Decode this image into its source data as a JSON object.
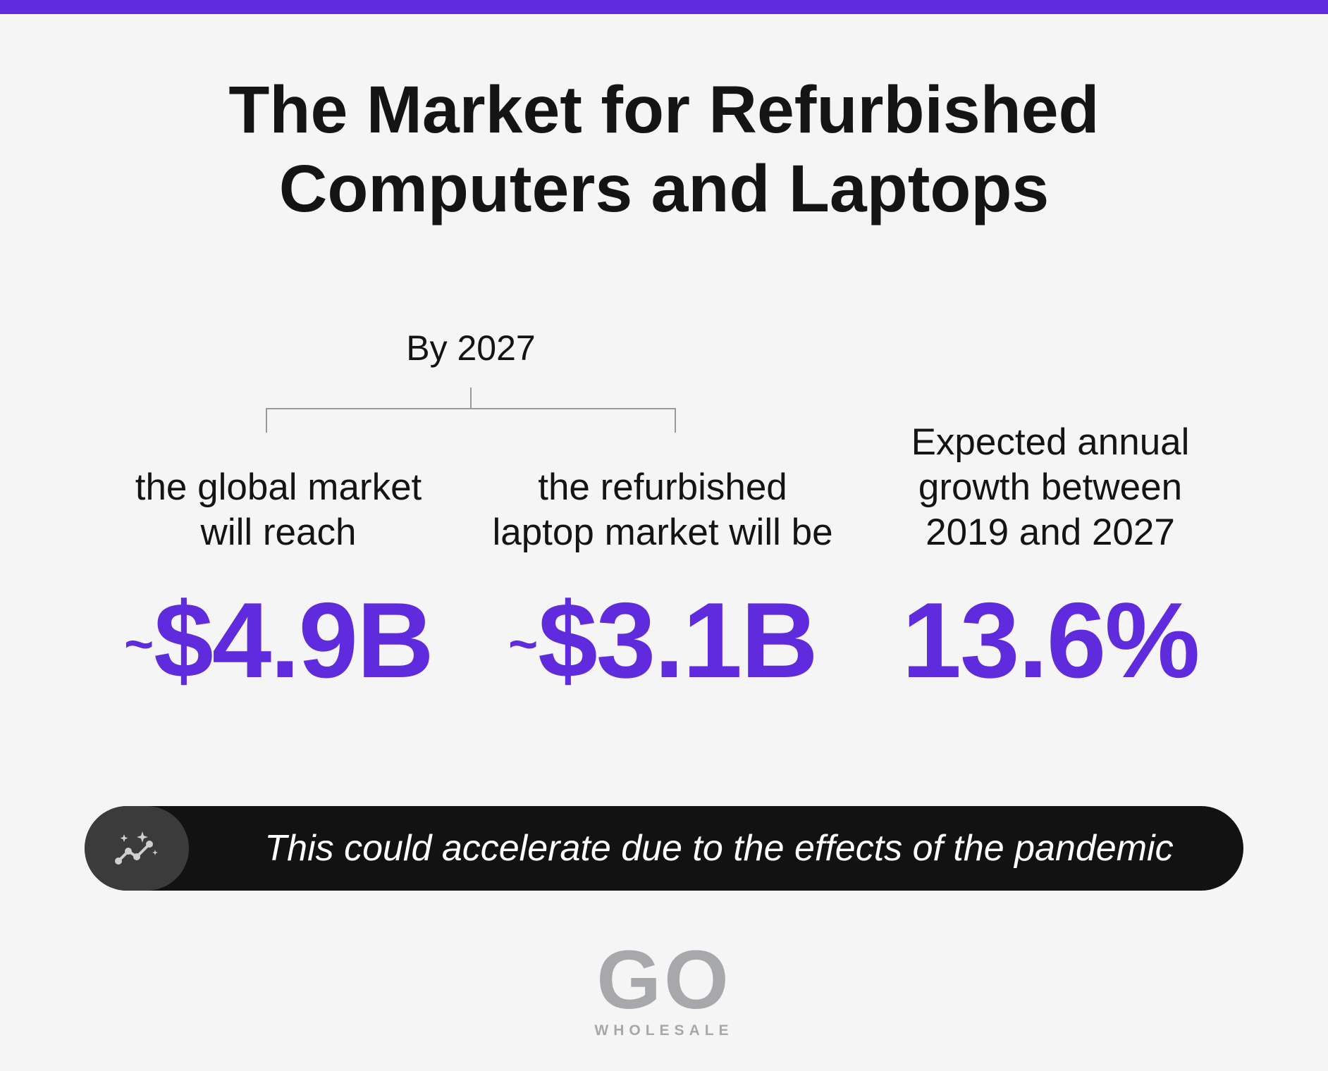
{
  "colors": {
    "accent": "#5f2bdc",
    "text": "#141414",
    "background": "#f5f5f5",
    "note_bar": "#121212",
    "logo": "#a7a8ab"
  },
  "title": {
    "line1": "The Market for Refurbished",
    "line2": "Computers and Laptops"
  },
  "group_label": "By 2027",
  "stats": [
    {
      "caption_line1": "the global market",
      "caption_line2": "will reach",
      "prefix": "~",
      "value": "$4.9B"
    },
    {
      "caption_line1": "the refurbished",
      "caption_line2": "laptop market will be",
      "prefix": "~",
      "value": "$3.1B"
    },
    {
      "caption_line1": "Expected annual",
      "caption_line2": "growth between",
      "caption_line3": "2019 and 2027",
      "value": "13.6%"
    }
  ],
  "note": {
    "icon": "trend-sparkle-icon",
    "text": "This could accelerate due to the effects of the pandemic"
  },
  "logo": {
    "mark": "GO",
    "sub": "WHOLESALE"
  }
}
